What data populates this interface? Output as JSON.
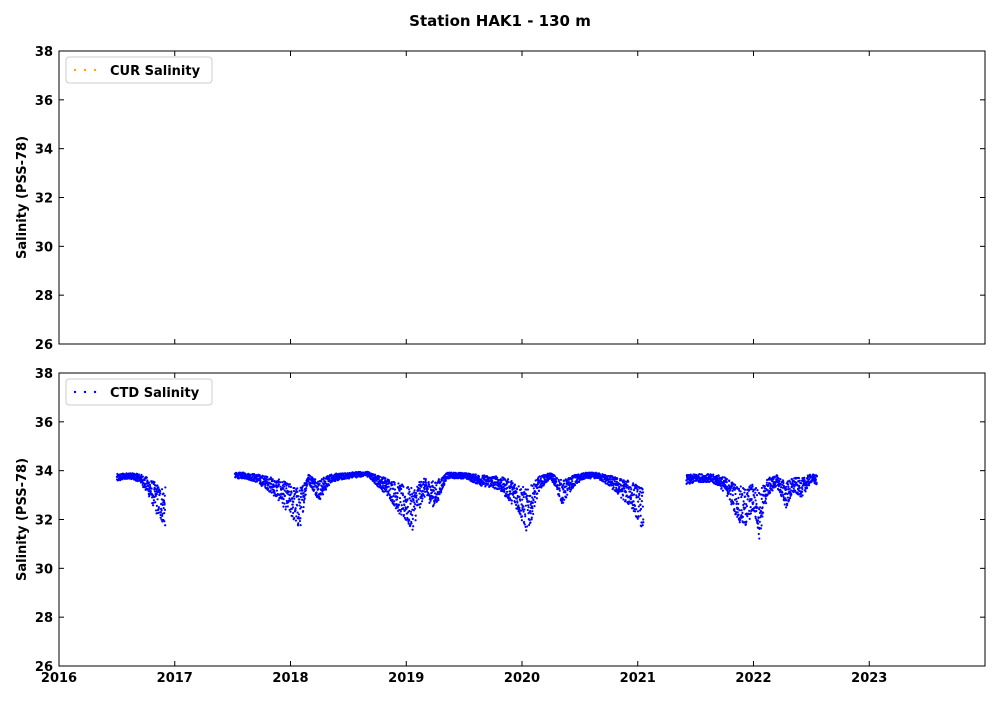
{
  "title": "Station HAK1 - 130 m",
  "colors": {
    "cur": "#ffa500",
    "ctd": "#0000ff",
    "frame": "#000000",
    "legend_border": "#cccccc"
  },
  "chart_data": [
    {
      "type": "scatter",
      "ylabel": "Salinity (PSS-78)",
      "ylim": [
        26,
        38
      ],
      "yticks": [
        "26",
        "28",
        "30",
        "32",
        "34",
        "36",
        "38"
      ],
      "xlim": [
        2016.0,
        2024.0
      ],
      "xticks": [
        "2016",
        "2017",
        "2018",
        "2019",
        "2020",
        "2021",
        "2022",
        "2023"
      ],
      "show_x_tick_labels": false,
      "grid": false,
      "legend_position": "top-left",
      "series": [
        {
          "name": "CUR Salinity",
          "color": "#ffa500",
          "points": []
        }
      ]
    },
    {
      "type": "scatter",
      "ylabel": "Salinity (PSS-78)",
      "ylim": [
        26,
        38
      ],
      "yticks": [
        "26",
        "28",
        "30",
        "32",
        "34",
        "36",
        "38"
      ],
      "xlim": [
        2016.0,
        2024.0
      ],
      "xticks": [
        "2016",
        "2017",
        "2018",
        "2019",
        "2020",
        "2021",
        "2022",
        "2023"
      ],
      "show_x_tick_labels": true,
      "grid": false,
      "legend_position": "top-left",
      "series": [
        {
          "name": "CTD Salinity",
          "color": "#0000ff",
          "segments": [
            {
              "x": [
                2016.5,
                2016.6,
                2016.7,
                2016.78,
                2016.85,
                2016.92
              ],
              "y": [
                33.7,
                33.8,
                33.7,
                33.3,
                32.8,
                32.5
              ]
            },
            {
              "x": [
                2017.52,
                2017.6,
                2017.7,
                2017.8,
                2017.9,
                2018.0,
                2018.08,
                2018.15,
                2018.25,
                2018.35,
                2018.5,
                2018.65,
                2018.75,
                2018.85,
                2018.95,
                2019.05,
                2019.15,
                2019.25,
                2019.35,
                2019.5,
                2019.65,
                2019.8,
                2019.95,
                2020.05,
                2020.15,
                2020.25,
                2020.35,
                2020.45,
                2020.55,
                2020.65,
                2020.75,
                2020.85,
                2020.95,
                2021.05
              ],
              "y": [
                33.8,
                33.8,
                33.7,
                33.5,
                33.2,
                32.8,
                32.4,
                33.7,
                33.2,
                33.7,
                33.8,
                33.9,
                33.6,
                33.3,
                32.8,
                32.4,
                33.3,
                33.0,
                33.8,
                33.8,
                33.6,
                33.5,
                33.0,
                32.3,
                33.5,
                33.8,
                33.1,
                33.6,
                33.8,
                33.8,
                33.6,
                33.3,
                33.0,
                32.4
              ]
            },
            {
              "x": [
                2021.42,
                2021.5,
                2021.6,
                2021.7,
                2021.78,
                2021.85,
                2021.92,
                2022.0,
                2022.05,
                2022.12,
                2022.2,
                2022.28,
                2022.35,
                2022.42,
                2022.5,
                2022.55
              ],
              "y": [
                33.6,
                33.7,
                33.7,
                33.6,
                33.3,
                32.8,
                32.4,
                32.9,
                32.2,
                33.3,
                33.6,
                33.0,
                33.4,
                33.3,
                33.7,
                33.6
              ]
            }
          ]
        }
      ]
    }
  ]
}
